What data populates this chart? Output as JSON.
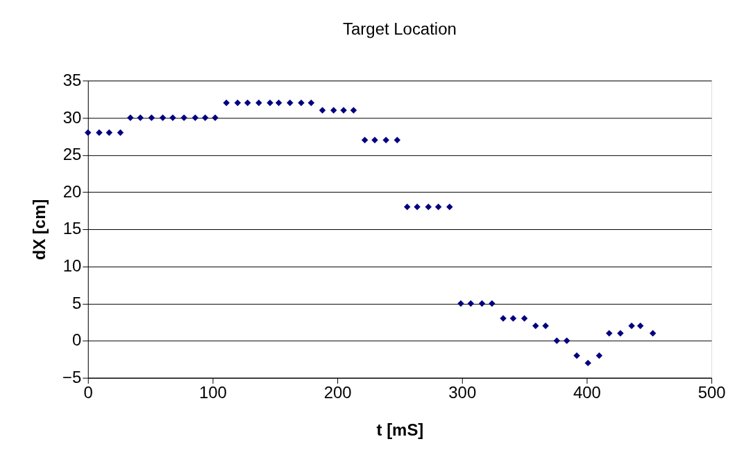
{
  "chart_data": {
    "type": "scatter",
    "title": "Target Location",
    "xlabel": "t [mS]",
    "ylabel": "dX [cm]",
    "x": [
      0,
      9,
      17,
      26,
      34,
      42,
      51,
      60,
      68,
      77,
      86,
      94,
      102,
      111,
      120,
      128,
      137,
      146,
      153,
      162,
      171,
      179,
      188,
      197,
      205,
      213,
      222,
      230,
      239,
      248,
      256,
      264,
      273,
      281,
      290,
      299,
      307,
      316,
      324,
      333,
      341,
      350,
      359,
      367,
      376,
      384,
      392,
      401,
      410,
      418,
      427,
      436,
      443,
      453
    ],
    "series": [
      {
        "color": "#000080",
        "values": [
          28,
          28,
          28,
          28,
          30,
          30,
          30,
          30,
          30,
          30,
          30,
          30,
          30,
          32,
          32,
          32,
          32,
          32,
          32,
          32,
          32,
          32,
          31,
          31,
          31,
          31,
          27,
          27,
          27,
          27,
          18,
          18,
          18,
          18,
          18,
          5,
          5,
          5,
          5,
          3,
          3,
          3,
          2,
          2,
          0,
          0,
          -2,
          -3,
          -2,
          1,
          1,
          2,
          2,
          1
        ]
      }
    ],
    "xlim": [
      0,
      500
    ],
    "xticks": [
      0,
      100,
      200,
      300,
      400,
      500
    ],
    "ylim": [
      -5,
      35
    ],
    "yticks": [
      -5,
      0,
      5,
      10,
      15,
      20,
      25,
      30,
      35
    ],
    "grid": "y",
    "marker": "diamond",
    "legend": false
  }
}
